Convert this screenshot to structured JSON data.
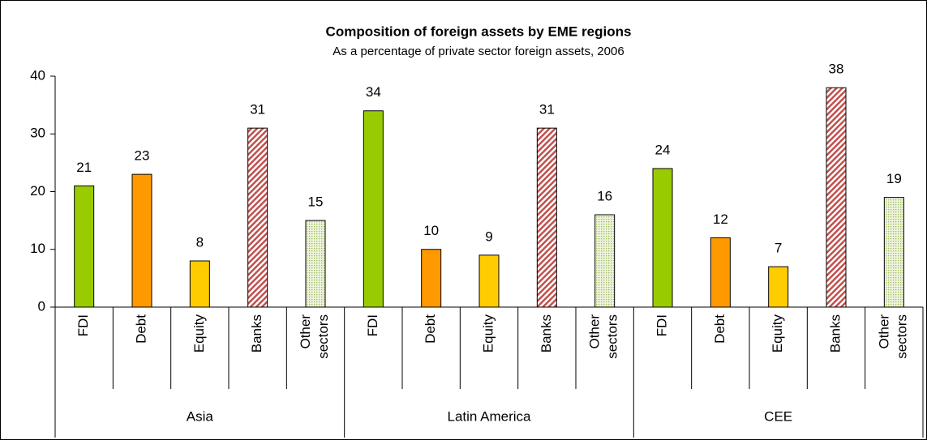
{
  "chart_data": {
    "type": "bar",
    "title": "Composition of foreign assets by EME regions",
    "subtitle": "As a percentage of private sector foreign assets, 2006",
    "groups": [
      {
        "name": "Asia",
        "categories": [
          "FDI",
          "Debt",
          "Equity",
          "Banks",
          "Other sectors"
        ],
        "values": [
          21,
          23,
          8,
          31,
          15
        ]
      },
      {
        "name": "Latin America",
        "categories": [
          "FDI",
          "Debt",
          "Equity",
          "Banks",
          "Other sectors"
        ],
        "values": [
          34,
          10,
          9,
          31,
          16
        ]
      },
      {
        "name": "CEE",
        "categories": [
          "FDI",
          "Debt",
          "Equity",
          "Banks",
          "Other sectors"
        ],
        "values": [
          24,
          12,
          7,
          38,
          19
        ]
      }
    ],
    "colors": [
      "#99cc00",
      "#ff9900",
      "#ffcc00",
      "#c0504d",
      "#c4d79b"
    ],
    "fills": [
      "solid",
      "solid",
      "solid",
      "hatch",
      "dots"
    ],
    "ylim": [
      0,
      40
    ],
    "yticks": [
      0,
      10,
      20,
      30,
      40
    ],
    "grid": false
  }
}
